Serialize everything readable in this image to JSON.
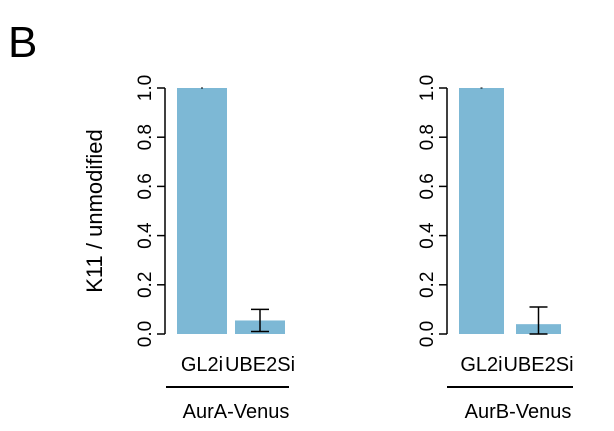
{
  "panel_label": "B",
  "chart_data": [
    {
      "type": "bar",
      "ylabel": "K11 / unmodified",
      "ylim": [
        0,
        1.0
      ],
      "yticks": [
        "0.0",
        "0.2",
        "0.4",
        "0.6",
        "0.8",
        "1.0"
      ],
      "categories": [
        "GL2i",
        "UBE2Si"
      ],
      "values": [
        1.0,
        0.055
      ],
      "error": [
        0.0,
        0.045
      ],
      "group_label": "AurA-Venus",
      "bar_color": "#7db8d5"
    },
    {
      "type": "bar",
      "ylabel": "",
      "ylim": [
        0,
        1.0
      ],
      "yticks": [
        "0.0",
        "0.2",
        "0.4",
        "0.6",
        "0.8",
        "1.0"
      ],
      "categories": [
        "GL2i",
        "UBE2Si"
      ],
      "values": [
        1.0,
        0.04
      ],
      "error": [
        0.0,
        0.07
      ],
      "group_label": "AurB-Venus",
      "bar_color": "#7db8d5"
    }
  ]
}
